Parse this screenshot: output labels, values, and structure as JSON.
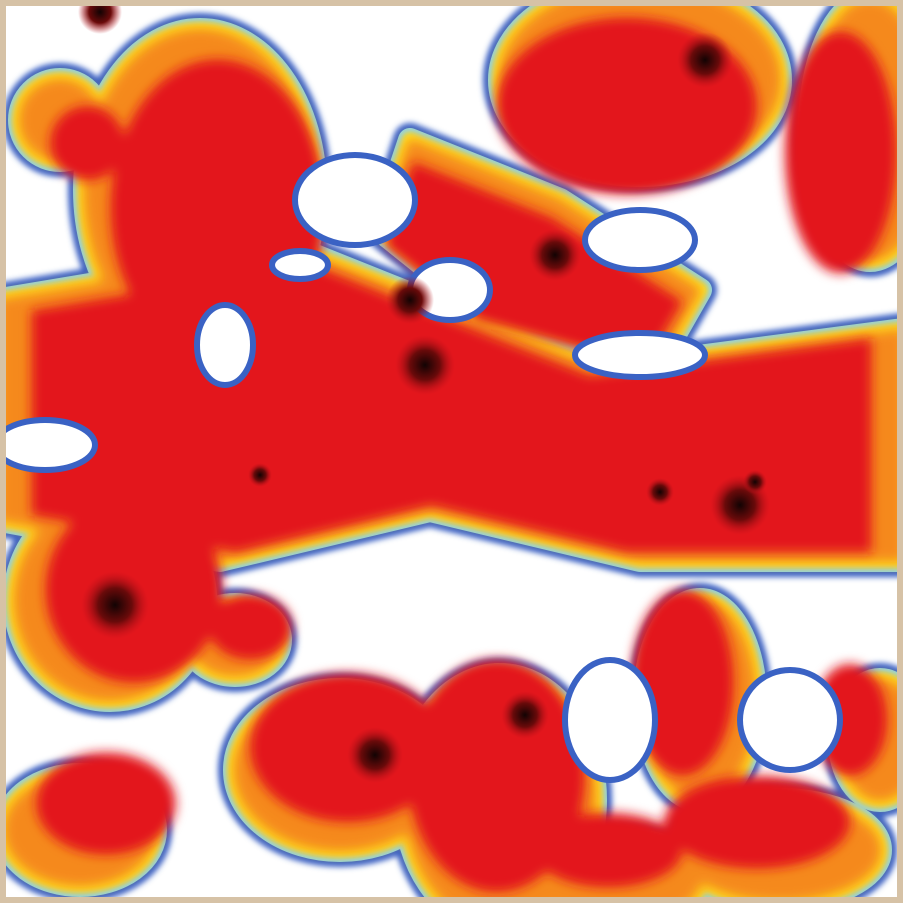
{
  "image": {
    "type": "density map",
    "colors": {
      "frame": "#d6c2a6",
      "background": "#ffffff",
      "contour": "#3a62c4",
      "cyan": "#8fd3ea",
      "yellow": "#ffe21a",
      "orange": "#f5891e",
      "red": "#e3161d",
      "peak": "#1a0505"
    }
  }
}
